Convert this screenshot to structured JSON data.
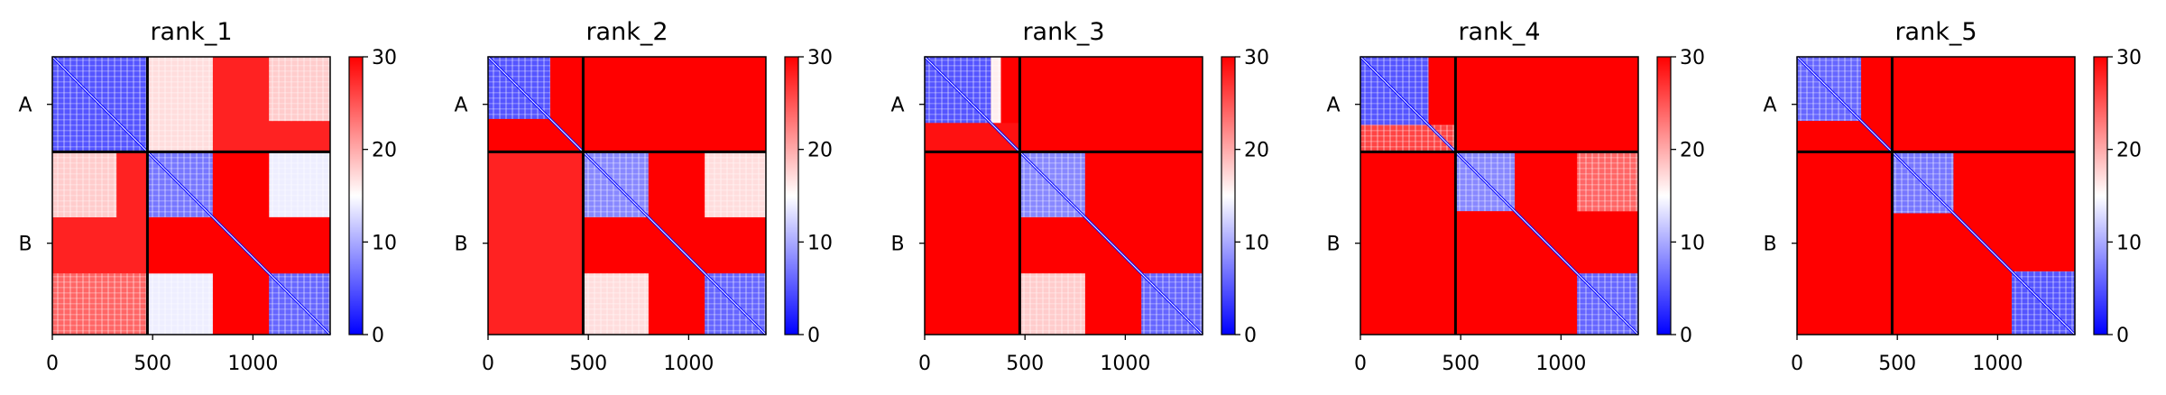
{
  "colors": {
    "low": "#0000ff",
    "mid": "#ffffff",
    "high": "#ff0000",
    "divider": "#000000"
  },
  "chart_data": [
    {
      "type": "heatmap",
      "title": "rank_1",
      "x_ticks": [
        0,
        500,
        1000
      ],
      "x_tick_labels": [
        "0",
        "500",
        "1000"
      ],
      "xlim": [
        0,
        1385
      ],
      "y_tick_labels": [
        "A",
        "B"
      ],
      "boundary": 474,
      "size": 1385,
      "colorbar": {
        "ticks": [
          0,
          10,
          20,
          30
        ],
        "tick_labels": [
          "0",
          "10",
          "20",
          "30"
        ],
        "range": [
          0,
          30
        ]
      },
      "regions": [
        {
          "x": [
            0,
            474
          ],
          "y": [
            0,
            474
          ],
          "value": 5
        },
        {
          "x": [
            474,
            1385
          ],
          "y": [
            0,
            474
          ],
          "value": 28
        },
        {
          "x": [
            0,
            474
          ],
          "y": [
            474,
            1385
          ],
          "value": 28
        },
        {
          "x": [
            474,
            800
          ],
          "y": [
            474,
            800
          ],
          "value": 7
        },
        {
          "x": [
            1080,
            1385
          ],
          "y": [
            1080,
            1385
          ],
          "value": 6
        },
        {
          "x": [
            474,
            800
          ],
          "y": [
            1080,
            1385
          ],
          "value": 14
        },
        {
          "x": [
            1080,
            1385
          ],
          "y": [
            474,
            800
          ],
          "value": 14
        },
        {
          "x": [
            474,
            800
          ],
          "y": [
            800,
            1080
          ],
          "value": 30
        },
        {
          "x": [
            800,
            1080
          ],
          "y": [
            474,
            1080
          ],
          "value": 30
        },
        {
          "x": [
            1080,
            1385
          ],
          "y": [
            800,
            1080
          ],
          "value": 30
        },
        {
          "x": [
            474,
            800
          ],
          "y": [
            0,
            474
          ],
          "value": 17
        },
        {
          "x": [
            1080,
            1385
          ],
          "y": [
            0,
            320
          ],
          "value": 18
        },
        {
          "x": [
            0,
            320
          ],
          "y": [
            474,
            800
          ],
          "value": 18
        },
        {
          "x": [
            0,
            474
          ],
          "y": [
            1080,
            1385
          ],
          "value": 24
        }
      ]
    },
    {
      "type": "heatmap",
      "title": "rank_2",
      "x_ticks": [
        0,
        500,
        1000
      ],
      "x_tick_labels": [
        "0",
        "500",
        "1000"
      ],
      "xlim": [
        0,
        1385
      ],
      "y_tick_labels": [
        "A",
        "B"
      ],
      "boundary": 474,
      "size": 1385,
      "colorbar": {
        "ticks": [
          0,
          10,
          20,
          30
        ],
        "tick_labels": [
          "0",
          "10",
          "20",
          "30"
        ],
        "range": [
          0,
          30
        ]
      },
      "regions": [
        {
          "x": [
            0,
            310
          ],
          "y": [
            0,
            310
          ],
          "value": 5
        },
        {
          "x": [
            310,
            474
          ],
          "y": [
            0,
            474
          ],
          "value": 30
        },
        {
          "x": [
            0,
            474
          ],
          "y": [
            310,
            474
          ],
          "value": 30
        },
        {
          "x": [
            474,
            1385
          ],
          "y": [
            0,
            474
          ],
          "value": 30
        },
        {
          "x": [
            0,
            474
          ],
          "y": [
            474,
            1385
          ],
          "value": 28
        },
        {
          "x": [
            474,
            800
          ],
          "y": [
            474,
            800
          ],
          "value": 8
        },
        {
          "x": [
            800,
            1080
          ],
          "y": [
            474,
            1080
          ],
          "value": 30
        },
        {
          "x": [
            474,
            800
          ],
          "y": [
            800,
            1080
          ],
          "value": 30
        },
        {
          "x": [
            1080,
            1385
          ],
          "y": [
            800,
            1080
          ],
          "value": 30
        },
        {
          "x": [
            1080,
            1385
          ],
          "y": [
            474,
            800
          ],
          "value": 17
        },
        {
          "x": [
            474,
            800
          ],
          "y": [
            1080,
            1385
          ],
          "value": 17
        },
        {
          "x": [
            1080,
            1385
          ],
          "y": [
            1080,
            1385
          ],
          "value": 6
        }
      ]
    },
    {
      "type": "heatmap",
      "title": "rank_3",
      "x_ticks": [
        0,
        500,
        1000
      ],
      "x_tick_labels": [
        "0",
        "500",
        "1000"
      ],
      "xlim": [
        0,
        1385
      ],
      "y_tick_labels": [
        "A",
        "B"
      ],
      "boundary": 474,
      "size": 1385,
      "colorbar": {
        "ticks": [
          0,
          10,
          20,
          30
        ],
        "tick_labels": [
          "0",
          "10",
          "20",
          "30"
        ],
        "range": [
          0,
          30
        ]
      },
      "regions": [
        {
          "x": [
            0,
            330
          ],
          "y": [
            0,
            330
          ],
          "value": 5
        },
        {
          "x": [
            330,
            380
          ],
          "y": [
            0,
            330
          ],
          "value": 16
        },
        {
          "x": [
            380,
            474
          ],
          "y": [
            0,
            474
          ],
          "value": 30
        },
        {
          "x": [
            0,
            474
          ],
          "y": [
            330,
            474
          ],
          "value": 29
        },
        {
          "x": [
            474,
            1385
          ],
          "y": [
            0,
            474
          ],
          "value": 30
        },
        {
          "x": [
            0,
            474
          ],
          "y": [
            474,
            1385
          ],
          "value": 30
        },
        {
          "x": [
            474,
            800
          ],
          "y": [
            474,
            800
          ],
          "value": 8
        },
        {
          "x": [
            800,
            1080
          ],
          "y": [
            474,
            1080
          ],
          "value": 30
        },
        {
          "x": [
            474,
            800
          ],
          "y": [
            800,
            1080
          ],
          "value": 30
        },
        {
          "x": [
            1080,
            1385
          ],
          "y": [
            800,
            1080
          ],
          "value": 30
        },
        {
          "x": [
            1080,
            1385
          ],
          "y": [
            474,
            800
          ],
          "value": 30
        },
        {
          "x": [
            474,
            800
          ],
          "y": [
            1080,
            1385
          ],
          "value": 18
        },
        {
          "x": [
            1080,
            1385
          ],
          "y": [
            1080,
            1385
          ],
          "value": 6
        }
      ]
    },
    {
      "type": "heatmap",
      "title": "rank_4",
      "x_ticks": [
        0,
        500,
        1000
      ],
      "x_tick_labels": [
        "0",
        "500",
        "1000"
      ],
      "xlim": [
        0,
        1385
      ],
      "y_tick_labels": [
        "A",
        "B"
      ],
      "boundary": 474,
      "size": 1385,
      "colorbar": {
        "ticks": [
          0,
          10,
          20,
          30
        ],
        "tick_labels": [
          "0",
          "10",
          "20",
          "30"
        ],
        "range": [
          0,
          30
        ]
      },
      "regions": [
        {
          "x": [
            0,
            340
          ],
          "y": [
            0,
            340
          ],
          "value": 5
        },
        {
          "x": [
            340,
            474
          ],
          "y": [
            0,
            474
          ],
          "value": 30
        },
        {
          "x": [
            0,
            474
          ],
          "y": [
            340,
            474
          ],
          "value": 26
        },
        {
          "x": [
            474,
            1385
          ],
          "y": [
            0,
            474
          ],
          "value": 30
        },
        {
          "x": [
            0,
            474
          ],
          "y": [
            474,
            1385
          ],
          "value": 30
        },
        {
          "x": [
            474,
            770
          ],
          "y": [
            474,
            770
          ],
          "value": 8
        },
        {
          "x": [
            770,
            1080
          ],
          "y": [
            474,
            1080
          ],
          "value": 30
        },
        {
          "x": [
            474,
            770
          ],
          "y": [
            770,
            1080
          ],
          "value": 30
        },
        {
          "x": [
            1080,
            1385
          ],
          "y": [
            770,
            1080
          ],
          "value": 30
        },
        {
          "x": [
            1080,
            1385
          ],
          "y": [
            474,
            770
          ],
          "value": 24
        },
        {
          "x": [
            474,
            770
          ],
          "y": [
            1080,
            1385
          ],
          "value": 30
        },
        {
          "x": [
            1080,
            1385
          ],
          "y": [
            1080,
            1385
          ],
          "value": 6
        }
      ]
    },
    {
      "type": "heatmap",
      "title": "rank_5",
      "x_ticks": [
        0,
        500,
        1000
      ],
      "x_tick_labels": [
        "0",
        "500",
        "1000"
      ],
      "xlim": [
        0,
        1385
      ],
      "y_tick_labels": [
        "A",
        "B"
      ],
      "boundary": 474,
      "size": 1385,
      "colorbar": {
        "ticks": [
          0,
          10,
          20,
          30
        ],
        "tick_labels": [
          "0",
          "10",
          "20",
          "30"
        ],
        "range": [
          0,
          30
        ]
      },
      "regions": [
        {
          "x": [
            0,
            320
          ],
          "y": [
            0,
            320
          ],
          "value": 6
        },
        {
          "x": [
            320,
            474
          ],
          "y": [
            0,
            474
          ],
          "value": 30
        },
        {
          "x": [
            0,
            474
          ],
          "y": [
            320,
            474
          ],
          "value": 30
        },
        {
          "x": [
            474,
            1385
          ],
          "y": [
            0,
            474
          ],
          "value": 30
        },
        {
          "x": [
            0,
            474
          ],
          "y": [
            474,
            1385
          ],
          "value": 30
        },
        {
          "x": [
            474,
            780
          ],
          "y": [
            474,
            780
          ],
          "value": 7
        },
        {
          "x": [
            780,
            1070
          ],
          "y": [
            474,
            1070
          ],
          "value": 30
        },
        {
          "x": [
            474,
            780
          ],
          "y": [
            780,
            1070
          ],
          "value": 30
        },
        {
          "x": [
            1070,
            1385
          ],
          "y": [
            780,
            1070
          ],
          "value": 30
        },
        {
          "x": [
            1070,
            1385
          ],
          "y": [
            474,
            780
          ],
          "value": 30
        },
        {
          "x": [
            474,
            780
          ],
          "y": [
            1070,
            1385
          ],
          "value": 30
        },
        {
          "x": [
            1070,
            1385
          ],
          "y": [
            1070,
            1385
          ],
          "value": 5
        }
      ]
    }
  ]
}
